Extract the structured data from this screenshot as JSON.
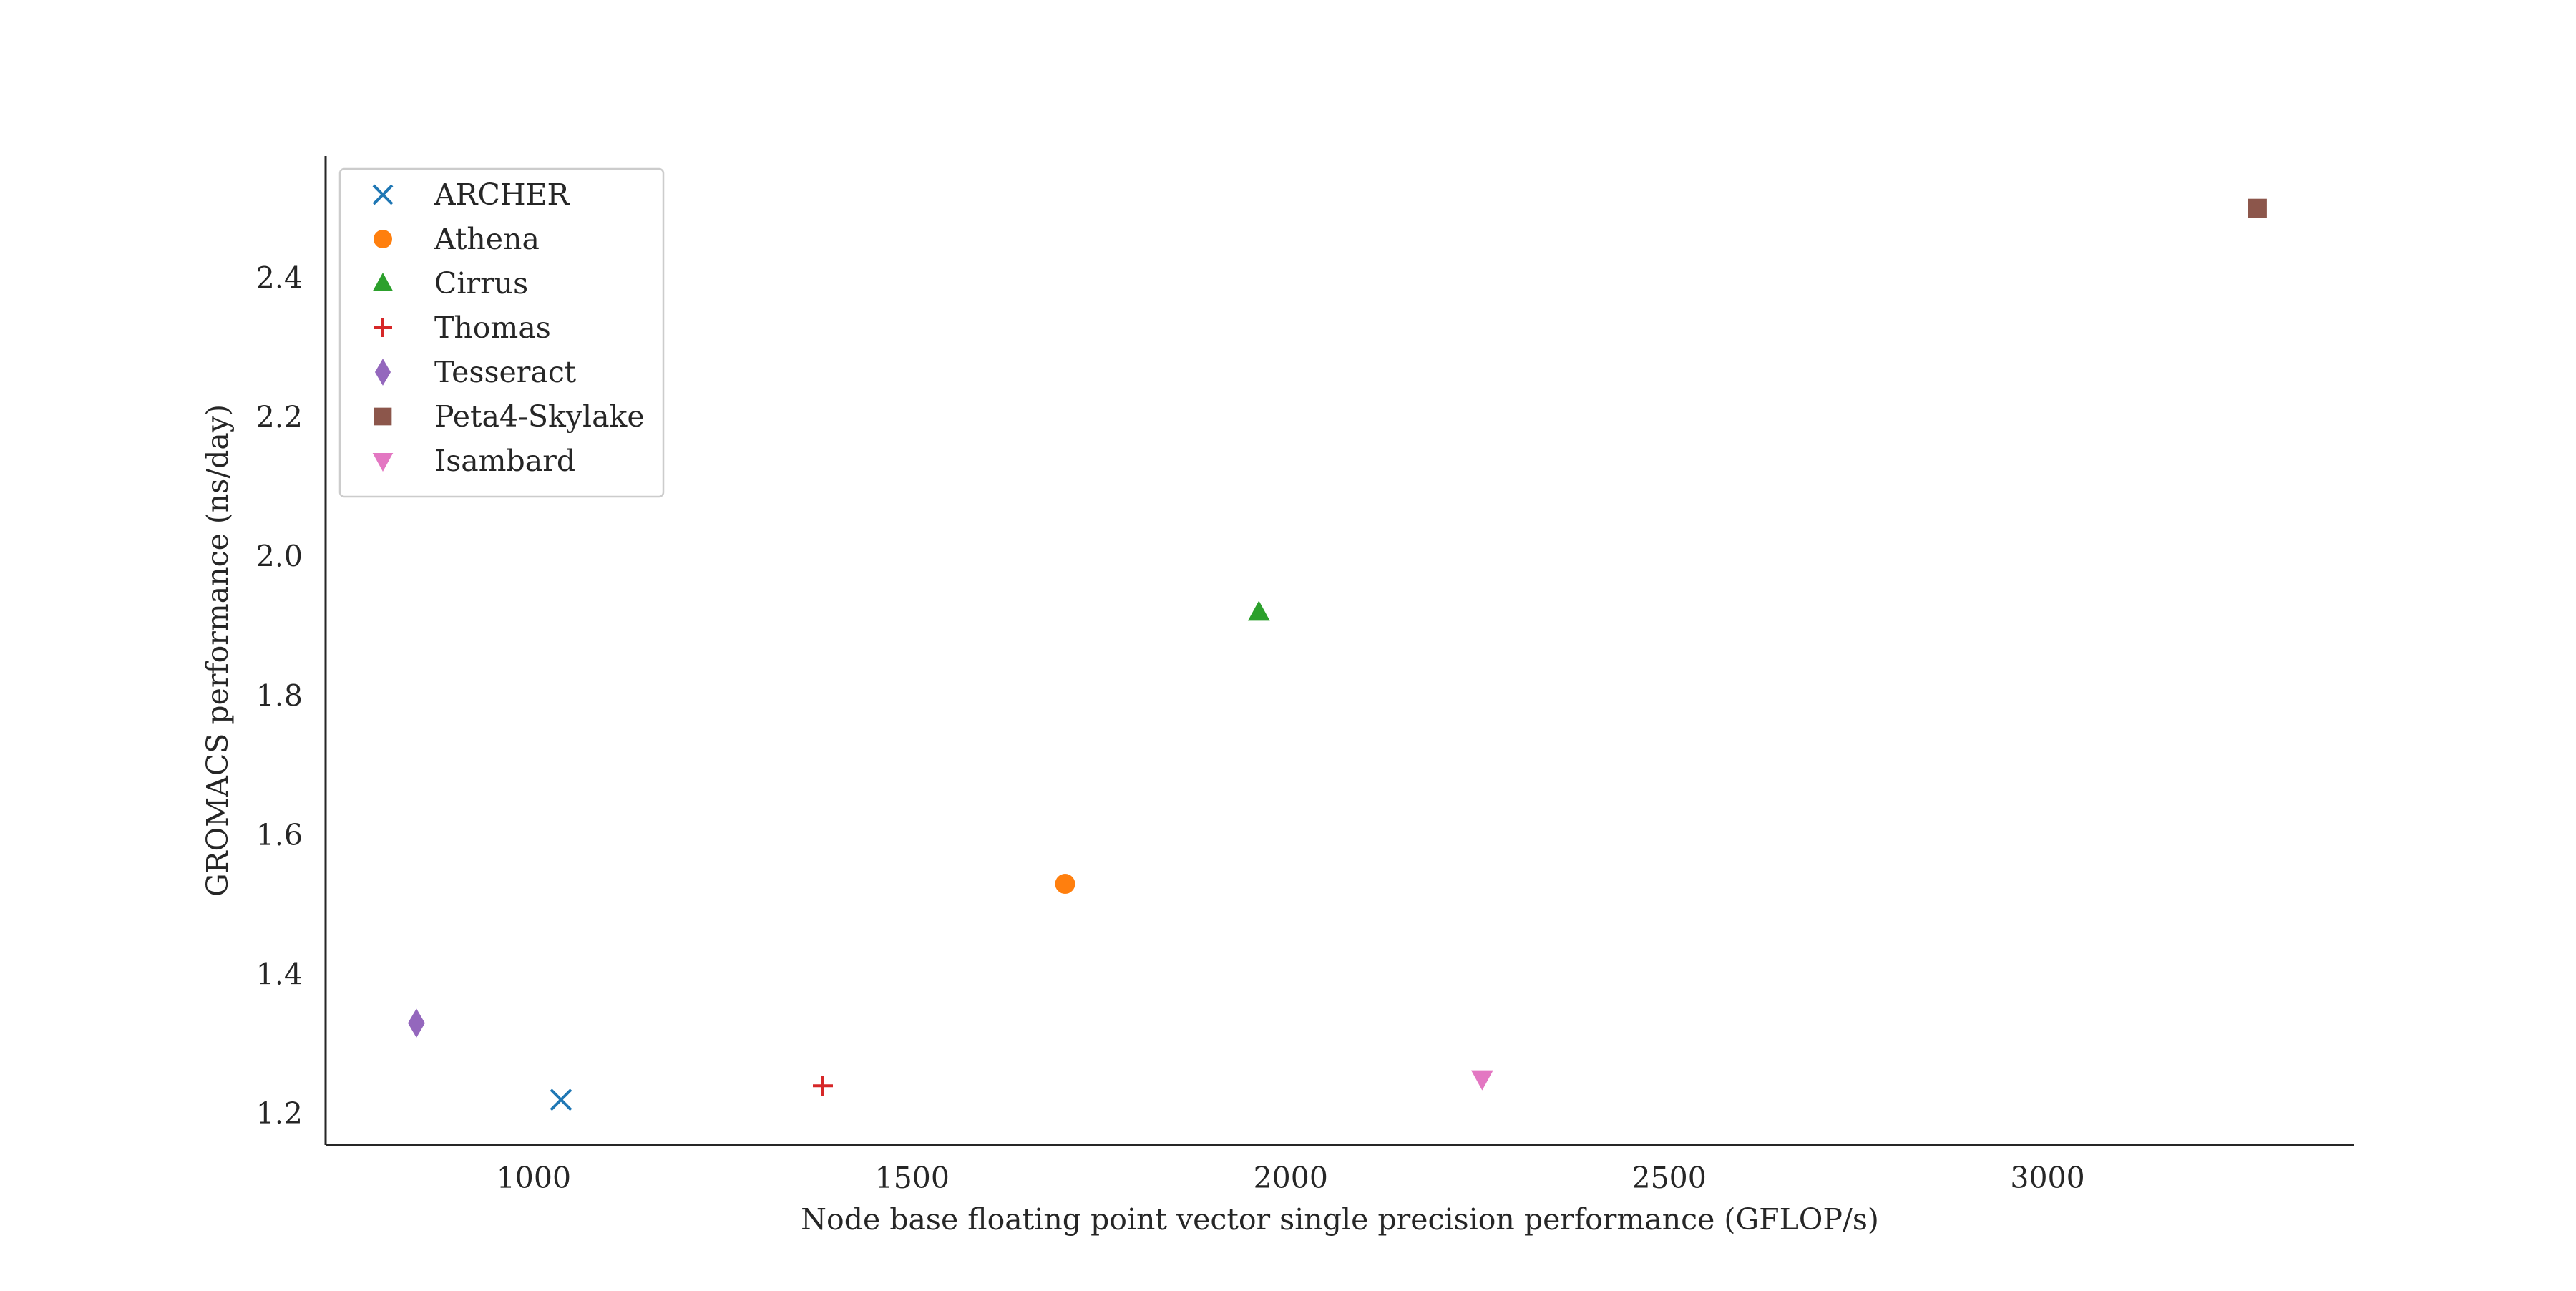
{
  "chart_data": {
    "type": "scatter",
    "title": "",
    "xlabel": "Node base floating point vector single precision performance (GFLOP/s)",
    "ylabel": "GROMACS performance (ns/day)",
    "xlim": [
      725,
      3405
    ],
    "ylim": [
      1.155,
      2.575
    ],
    "xticks": [
      1000,
      1500,
      2000,
      2500,
      3000
    ],
    "yticks": [
      1.2,
      1.4,
      1.6,
      1.8,
      2.0,
      2.2,
      2.4
    ],
    "xtick_labels": [
      "1000",
      "1500",
      "2000",
      "2500",
      "3000"
    ],
    "ytick_labels": [
      "1.2",
      "1.4",
      "1.6",
      "1.8",
      "2.0",
      "2.2",
      "2.4"
    ],
    "grid": false,
    "legend_position": "top-left",
    "series": [
      {
        "name": "ARCHER",
        "marker": "x",
        "color": "#1f77b4",
        "points": [
          {
            "x": 1036,
            "y": 1.22
          }
        ]
      },
      {
        "name": "Athena",
        "marker": "circle",
        "color": "#ff7f0e",
        "points": [
          {
            "x": 1702,
            "y": 1.53
          }
        ]
      },
      {
        "name": "Cirrus",
        "marker": "triangle-up",
        "color": "#2ca02c",
        "points": [
          {
            "x": 1958,
            "y": 1.92
          }
        ]
      },
      {
        "name": "Thomas",
        "marker": "plus",
        "color": "#d62728",
        "points": [
          {
            "x": 1382,
            "y": 1.24
          }
        ]
      },
      {
        "name": "Tesseract",
        "marker": "diamond",
        "color": "#9467bd",
        "points": [
          {
            "x": 845,
            "y": 1.33
          }
        ]
      },
      {
        "name": "Peta4-Skylake",
        "marker": "square",
        "color": "#8c564b",
        "points": [
          {
            "x": 3277,
            "y": 2.5
          }
        ]
      },
      {
        "name": "Isambard",
        "marker": "triangle-down",
        "color": "#e377c2",
        "points": [
          {
            "x": 2253,
            "y": 1.25
          }
        ]
      }
    ]
  }
}
